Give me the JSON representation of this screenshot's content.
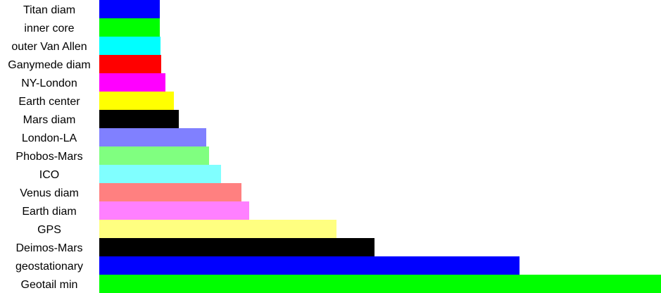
{
  "chart_data": {
    "type": "bar",
    "orientation": "horizontal",
    "title": "",
    "xlabel": "",
    "ylabel": "",
    "grid": false,
    "legend": "none",
    "categories": [
      "Titan diam",
      "inner core",
      "outer Van Allen",
      "Ganymede diam",
      "NY-London",
      "Earth center",
      "Mars diam",
      "London-LA",
      "Phobos-Mars",
      "ICO",
      "Venus diam",
      "Earth diam",
      "GPS",
      "Deimos-Mars",
      "geostationary",
      "Geotail min"
    ],
    "values": [
      86,
      86,
      87,
      88,
      94,
      106,
      113,
      152,
      156,
      173,
      202,
      213,
      337,
      391,
      597,
      798
    ],
    "xlim": [
      0,
      798
    ],
    "colors": [
      "#0000ff",
      "#00ff00",
      "#00ffff",
      "#ff0000",
      "#ff00ff",
      "#ffff00",
      "#000000",
      "#8080ff",
      "#80ff80",
      "#80ffff",
      "#ff8080",
      "#ff80ff",
      "#ffff80",
      "#000000",
      "#0000ff",
      "#00ff00"
    ]
  }
}
